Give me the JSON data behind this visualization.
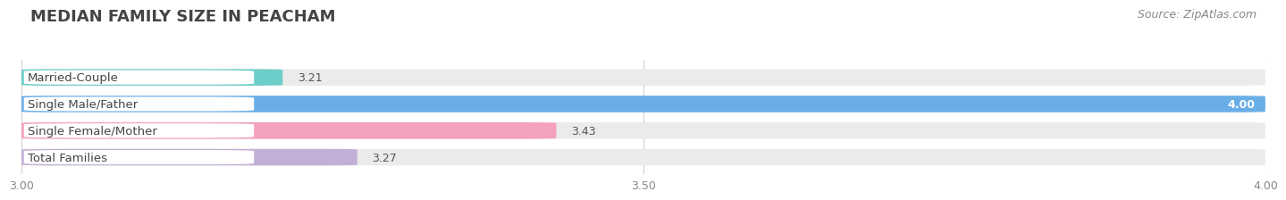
{
  "title": "MEDIAN FAMILY SIZE IN PEACHAM",
  "source": "Source: ZipAtlas.com",
  "categories": [
    "Married-Couple",
    "Single Male/Father",
    "Single Female/Mother",
    "Total Families"
  ],
  "values": [
    3.21,
    4.0,
    3.43,
    3.27
  ],
  "bar_colors": [
    "#6dcdc8",
    "#6aaee8",
    "#f4a0bf",
    "#c3afd6"
  ],
  "bar_height": 0.62,
  "xlim": [
    3.0,
    4.0
  ],
  "xstart": 3.0,
  "xticks": [
    3.0,
    3.5,
    4.0
  ],
  "xtick_labels": [
    "3.00",
    "3.50",
    "4.00"
  ],
  "background_color": "#ffffff",
  "bar_bg_color": "#ebebeb",
  "title_fontsize": 13,
  "source_fontsize": 9,
  "label_fontsize": 9.5,
  "value_fontsize": 9
}
